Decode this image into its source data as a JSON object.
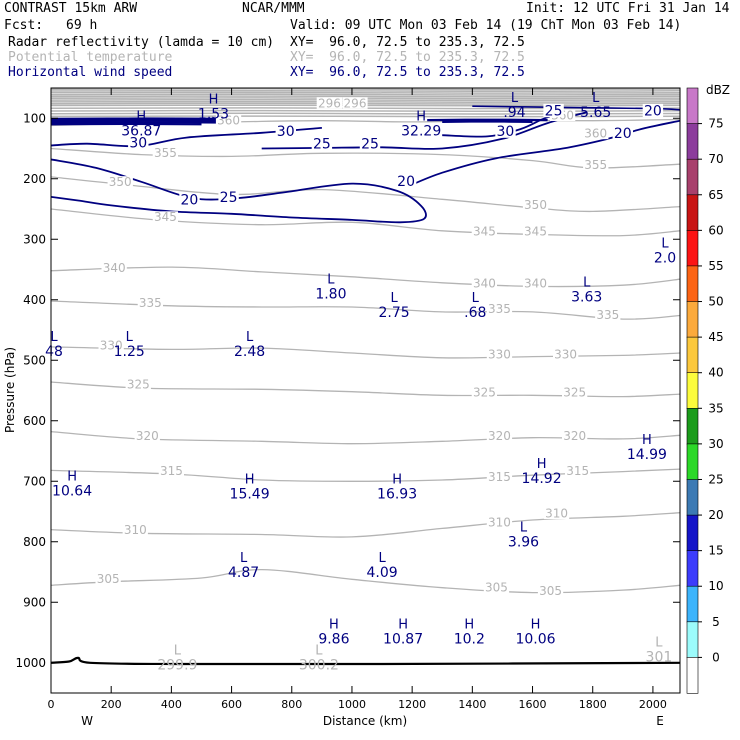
{
  "header": {
    "model": "CONTRAST 15km ARW",
    "center": "NCAR/MMM",
    "init": "Init: 12 UTC Fri 31 Jan 14",
    "fcst_label": "Fcst:",
    "fcst_value": "69 h",
    "valid": "Valid: 09 UTC Mon 03 Feb 14 (19 ChT Mon 03 Feb 14)",
    "fields": [
      {
        "name": "Radar reflectivity (lamda = 10 cm)",
        "xy": "XY=  96.0, 72.5 to 235.3, 72.5",
        "color": "#000000"
      },
      {
        "name": "Potential temperature",
        "xy": "XY=  96.0, 72.5 to 235.3, 72.5",
        "color": "#b4b4b4"
      },
      {
        "name": "Horizontal wind speed",
        "xy": "XY=  96.0, 72.5 to 235.3, 72.5",
        "color": "#000080"
      }
    ]
  },
  "chart_data": {
    "type": "cross-section contour",
    "xlabel": "Distance (km)",
    "ylabel": "Pressure (hPa)",
    "xlim": [
      0,
      2090
    ],
    "ylim": [
      1050,
      50
    ],
    "x_ticks": [
      "0",
      "200",
      "400",
      "600",
      "800",
      "1000",
      "1200",
      "1400",
      "1600",
      "1800",
      "2000"
    ],
    "x_tick_values": [
      0,
      200,
      400,
      600,
      800,
      1000,
      1200,
      1400,
      1600,
      1800,
      2000
    ],
    "y_ticks": [
      "100",
      "200",
      "300",
      "400",
      "500",
      "600",
      "700",
      "800",
      "900",
      "1000"
    ],
    "y_tick_values": [
      100,
      200,
      300,
      400,
      500,
      600,
      700,
      800,
      900,
      1000
    ],
    "x_end_labels": {
      "left": "W",
      "right": "E"
    },
    "colorbar": {
      "unit": "dBZ",
      "levels": [
        "0",
        "5",
        "10",
        "15",
        "20",
        "25",
        "30",
        "35",
        "40",
        "45",
        "50",
        "55",
        "60",
        "65",
        "70",
        "75"
      ],
      "colors": [
        "#ffffff",
        "#9cfcfc",
        "#3cb4fc",
        "#3c3cfc",
        "#1414c8",
        "#3c7ab4",
        "#2cd828",
        "#1c9c1c",
        "#fcfc3c",
        "#fcc83c",
        "#fcaa3c",
        "#fc6414",
        "#fc1414",
        "#c81414",
        "#a8406c",
        "#8c3c9c",
        "#c878c8"
      ]
    },
    "theta_labels": [
      {
        "text": "360",
        "x": 590,
        "p": 108
      },
      {
        "text": "360",
        "x": 1700,
        "p": 100
      },
      {
        "text": "360",
        "x": 1810,
        "p": 130
      },
      {
        "text": "355",
        "x": 380,
        "p": 162
      },
      {
        "text": "355",
        "x": 1810,
        "p": 182
      },
      {
        "text": "350",
        "x": 230,
        "p": 210
      },
      {
        "text": "350",
        "x": 1610,
        "p": 248
      },
      {
        "text": "345",
        "x": 380,
        "p": 268
      },
      {
        "text": "345",
        "x": 1440,
        "p": 292
      },
      {
        "text": "345",
        "x": 1610,
        "p": 292
      },
      {
        "text": "340",
        "x": 210,
        "p": 352
      },
      {
        "text": "340",
        "x": 1440,
        "p": 378
      },
      {
        "text": "340",
        "x": 1610,
        "p": 378
      },
      {
        "text": "335",
        "x": 330,
        "p": 410
      },
      {
        "text": "335",
        "x": 1490,
        "p": 420
      },
      {
        "text": "335",
        "x": 1850,
        "p": 430
      },
      {
        "text": "330",
        "x": 200,
        "p": 480
      },
      {
        "text": "330",
        "x": 1490,
        "p": 495
      },
      {
        "text": "330",
        "x": 1710,
        "p": 495
      },
      {
        "text": "325",
        "x": 290,
        "p": 545
      },
      {
        "text": "325",
        "x": 1440,
        "p": 558
      },
      {
        "text": "325",
        "x": 1740,
        "p": 558
      },
      {
        "text": "320",
        "x": 320,
        "p": 630
      },
      {
        "text": "320",
        "x": 1490,
        "p": 630
      },
      {
        "text": "320",
        "x": 1740,
        "p": 630
      },
      {
        "text": "315",
        "x": 400,
        "p": 688
      },
      {
        "text": "315",
        "x": 1490,
        "p": 698
      },
      {
        "text": "315",
        "x": 1750,
        "p": 688
      },
      {
        "text": "310",
        "x": 280,
        "p": 785
      },
      {
        "text": "310",
        "x": 1490,
        "p": 773
      },
      {
        "text": "310",
        "x": 1680,
        "p": 758
      },
      {
        "text": "305",
        "x": 190,
        "p": 866
      },
      {
        "text": "305",
        "x": 1480,
        "p": 880
      },
      {
        "text": "305",
        "x": 1660,
        "p": 886
      },
      {
        "text": "296",
        "x": 925,
        "p": 80
      },
      {
        "text": "296",
        "x": 1010,
        "p": 80
      }
    ],
    "wind_labels": [
      {
        "text": "30",
        "x": 290,
        "p": 146
      },
      {
        "text": "30",
        "x": 780,
        "p": 127
      },
      {
        "text": "30",
        "x": 1510,
        "p": 127
      },
      {
        "text": "25",
        "x": 900,
        "p": 148
      },
      {
        "text": "25",
        "x": 1060,
        "p": 148
      },
      {
        "text": "25",
        "x": 1670,
        "p": 93
      },
      {
        "text": "25",
        "x": 590,
        "p": 236
      },
      {
        "text": "20",
        "x": 1900,
        "p": 130
      },
      {
        "text": "20",
        "x": 2000,
        "p": 93
      },
      {
        "text": "20",
        "x": 1180,
        "p": 210
      },
      {
        "text": "20",
        "x": 460,
        "p": 240
      }
    ],
    "hl_markers": [
      {
        "letter": "H",
        "value": "1.53",
        "x": 540,
        "p": 82,
        "kind": "wind"
      },
      {
        "letter": "H",
        "value": "36.87",
        "x": 300,
        "p": 110,
        "kind": "wind"
      },
      {
        "letter": "H",
        "value": "32.29",
        "x": 1230,
        "p": 110,
        "kind": "wind"
      },
      {
        "letter": "L",
        "value": ".94",
        "x": 1540,
        "p": 80,
        "kind": "wind"
      },
      {
        "letter": "L",
        "value": "5.65",
        "x": 1810,
        "p": 80,
        "kind": "wind"
      },
      {
        "letter": "L",
        "value": "2.0",
        "x": 2040,
        "p": 320,
        "kind": "wind"
      },
      {
        "letter": "L",
        "value": "1.80",
        "x": 930,
        "p": 380,
        "kind": "wind"
      },
      {
        "letter": "L",
        "value": "2.75",
        "x": 1140,
        "p": 410,
        "kind": "wind"
      },
      {
        "letter": "L",
        "value": ".68",
        "x": 1410,
        "p": 410,
        "kind": "wind"
      },
      {
        "letter": "L",
        "value": "3.63",
        "x": 1780,
        "p": 385,
        "kind": "wind"
      },
      {
        "letter": "L",
        "value": "48",
        "x": 10,
        "p": 475,
        "kind": "wind"
      },
      {
        "letter": "L",
        "value": "1.25",
        "x": 260,
        "p": 475,
        "kind": "wind"
      },
      {
        "letter": "L",
        "value": "2.48",
        "x": 660,
        "p": 475,
        "kind": "wind"
      },
      {
        "letter": "H",
        "value": "14.99",
        "x": 1980,
        "p": 645,
        "kind": "wind"
      },
      {
        "letter": "H",
        "value": "14.92",
        "x": 1630,
        "p": 685,
        "kind": "wind"
      },
      {
        "letter": "H",
        "value": "10.64",
        "x": 70,
        "p": 705,
        "kind": "wind"
      },
      {
        "letter": "H",
        "value": "15.49",
        "x": 660,
        "p": 710,
        "kind": "wind"
      },
      {
        "letter": "H",
        "value": "16.93",
        "x": 1150,
        "p": 710,
        "kind": "wind"
      },
      {
        "letter": "L",
        "value": "3.96",
        "x": 1570,
        "p": 790,
        "kind": "wind"
      },
      {
        "letter": "L",
        "value": "4.87",
        "x": 640,
        "p": 840,
        "kind": "wind"
      },
      {
        "letter": "L",
        "value": "4.09",
        "x": 1100,
        "p": 840,
        "kind": "wind"
      },
      {
        "letter": "H",
        "value": "9.86",
        "x": 940,
        "p": 950,
        "kind": "wind"
      },
      {
        "letter": "H",
        "value": "10.87",
        "x": 1170,
        "p": 950,
        "kind": "wind"
      },
      {
        "letter": "H",
        "value": "10.2",
        "x": 1390,
        "p": 950,
        "kind": "wind"
      },
      {
        "letter": "H",
        "value": "10.06",
        "x": 1610,
        "p": 950,
        "kind": "wind"
      },
      {
        "letter": "L",
        "value": "299.9",
        "x": 420,
        "p": 993,
        "kind": "theta"
      },
      {
        "letter": "L",
        "value": "300.2",
        "x": 890,
        "p": 993,
        "kind": "theta"
      },
      {
        "letter": "L",
        "value": "301",
        "x": 2020,
        "p": 980,
        "kind": "theta"
      }
    ]
  }
}
